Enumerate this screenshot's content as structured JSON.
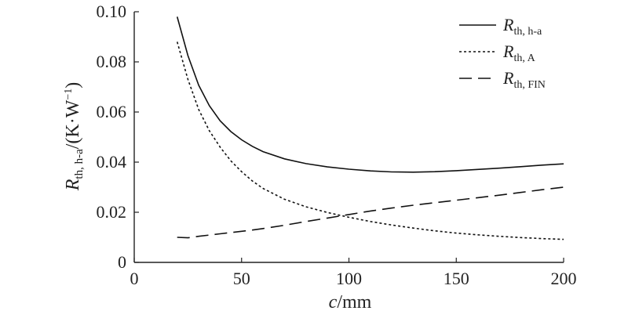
{
  "chart_data": {
    "type": "line",
    "title": "",
    "xlabel": {
      "var": "c",
      "unit": "/mm"
    },
    "ylabel": {
      "var": "R",
      "sub": "th, h-a",
      "unit": "/(K·W",
      "sup": "−1",
      "close": ")"
    },
    "xlim": [
      0,
      200
    ],
    "ylim": [
      0,
      0.1
    ],
    "xticks": [
      0,
      50,
      100,
      150,
      200
    ],
    "yticks": [
      0,
      0.02,
      0.04,
      0.06,
      0.08,
      0.1
    ],
    "xtick_labels": [
      "0",
      "50",
      "100",
      "150",
      "200"
    ],
    "ytick_labels": [
      "0",
      "0.02",
      "0.04",
      "0.06",
      "0.08",
      "0.10"
    ],
    "grid": false,
    "legend_position": "top-right",
    "x": [
      20,
      25,
      30,
      35,
      40,
      45,
      50,
      55,
      60,
      70,
      80,
      90,
      100,
      110,
      120,
      130,
      140,
      150,
      160,
      170,
      180,
      190,
      200
    ],
    "series": [
      {
        "name": {
          "var": "R",
          "sub": "th, h-a"
        },
        "style": "solid",
        "values": [
          0.098,
          0.0825,
          0.0707,
          0.0625,
          0.0565,
          0.0522,
          0.0489,
          0.0463,
          0.0442,
          0.0413,
          0.0394,
          0.0381,
          0.0372,
          0.0365,
          0.0361,
          0.036,
          0.0362,
          0.0366,
          0.0371,
          0.0376,
          0.0382,
          0.0388,
          0.0393
        ]
      },
      {
        "name": {
          "var": "R",
          "sub": "th, A"
        },
        "style": "dotted",
        "values": [
          0.088,
          0.073,
          0.061,
          0.0525,
          0.046,
          0.0405,
          0.0362,
          0.0325,
          0.0295,
          0.0252,
          0.0222,
          0.0199,
          0.018,
          0.0163,
          0.0149,
          0.0137,
          0.0126,
          0.0117,
          0.011,
          0.0104,
          0.0099,
          0.0095,
          0.0092
        ]
      },
      {
        "name": {
          "var": "R",
          "sub": "th, FIN"
        },
        "style": "dashed",
        "values": [
          0.01,
          0.0098,
          0.0104,
          0.0109,
          0.0114,
          0.0119,
          0.0124,
          0.0129,
          0.0135,
          0.0148,
          0.0163,
          0.0177,
          0.0191,
          0.0205,
          0.0217,
          0.0228,
          0.0238,
          0.0248,
          0.0258,
          0.0268,
          0.0279,
          0.029,
          0.03
        ]
      }
    ]
  }
}
